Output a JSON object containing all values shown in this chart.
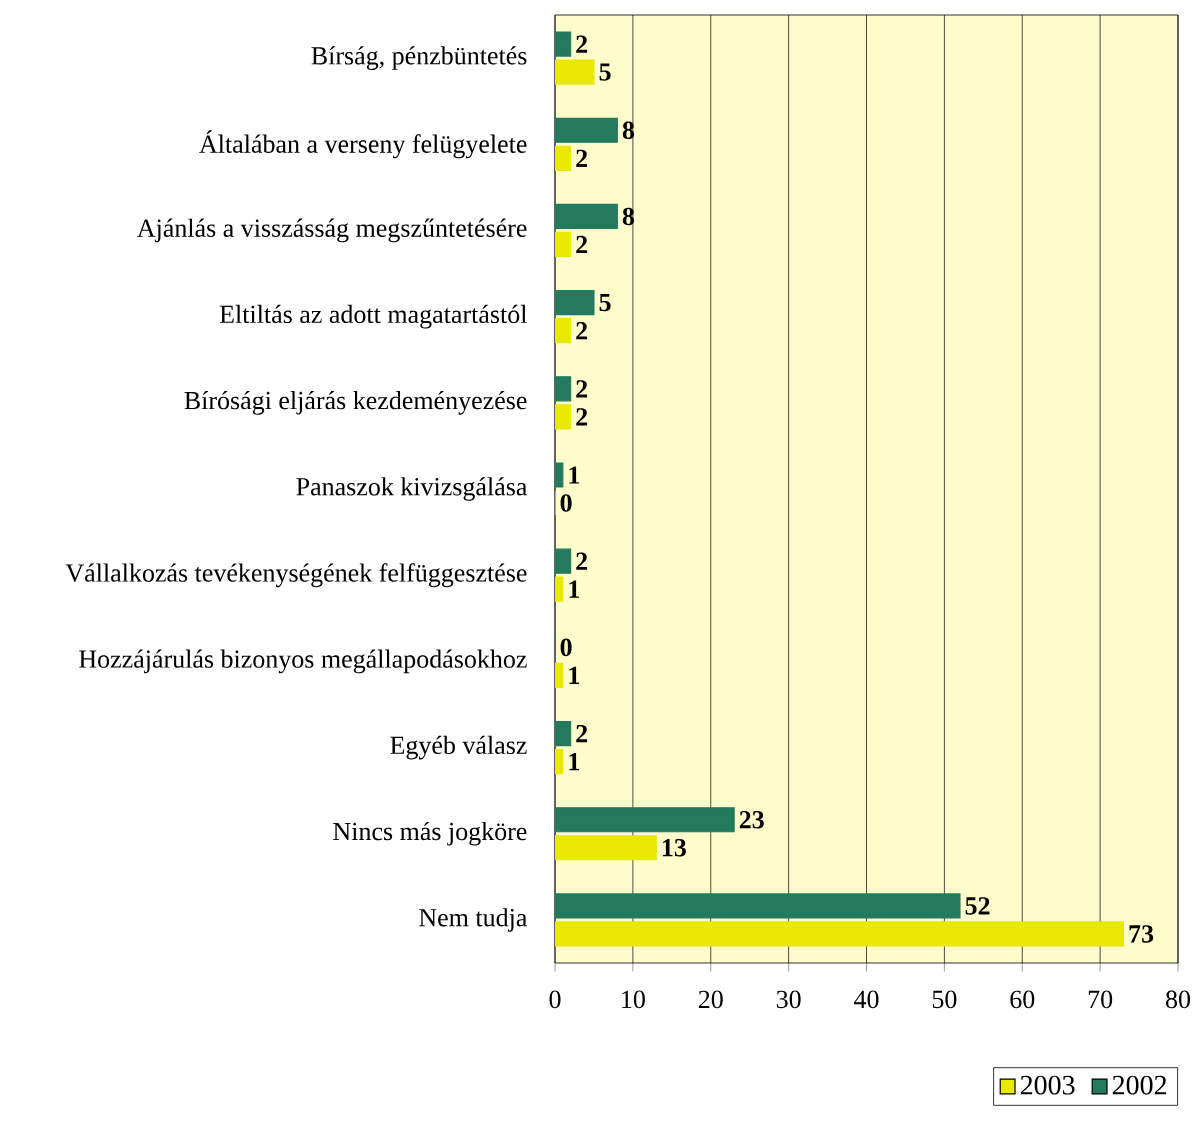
{
  "chart_data": {
    "type": "bar",
    "orientation": "horizontal",
    "categories": [
      "Bírság, pénzbüntetés",
      "Általában a verseny felügyelete",
      "Ajánlás a visszásság megszűntetésére",
      "Eltiltás az adott magatartástól",
      "Bírósági eljárás kezdeményezése",
      "Panaszok kivizsgálása",
      "Vállalkozás tevékenységének felfüggesztése",
      "Hozzájárulás bizonyos megállapodásokhoz",
      "Egyéb válasz",
      "Nincs más jogköre",
      "Nem tudja"
    ],
    "series": [
      {
        "name": "2003",
        "color": "#e8e800",
        "values": [
          5,
          2,
          2,
          2,
          2,
          0,
          1,
          1,
          1,
          13,
          73
        ]
      },
      {
        "name": "2002",
        "color": "#237a5c",
        "values": [
          2,
          8,
          8,
          5,
          2,
          1,
          2,
          0,
          2,
          23,
          52
        ]
      }
    ],
    "xlim": [
      0,
      80
    ],
    "xticks": [
      0,
      10,
      20,
      30,
      40,
      50,
      60,
      70,
      80
    ],
    "grid": "x",
    "legend": "bottom right",
    "data_labels": true
  }
}
